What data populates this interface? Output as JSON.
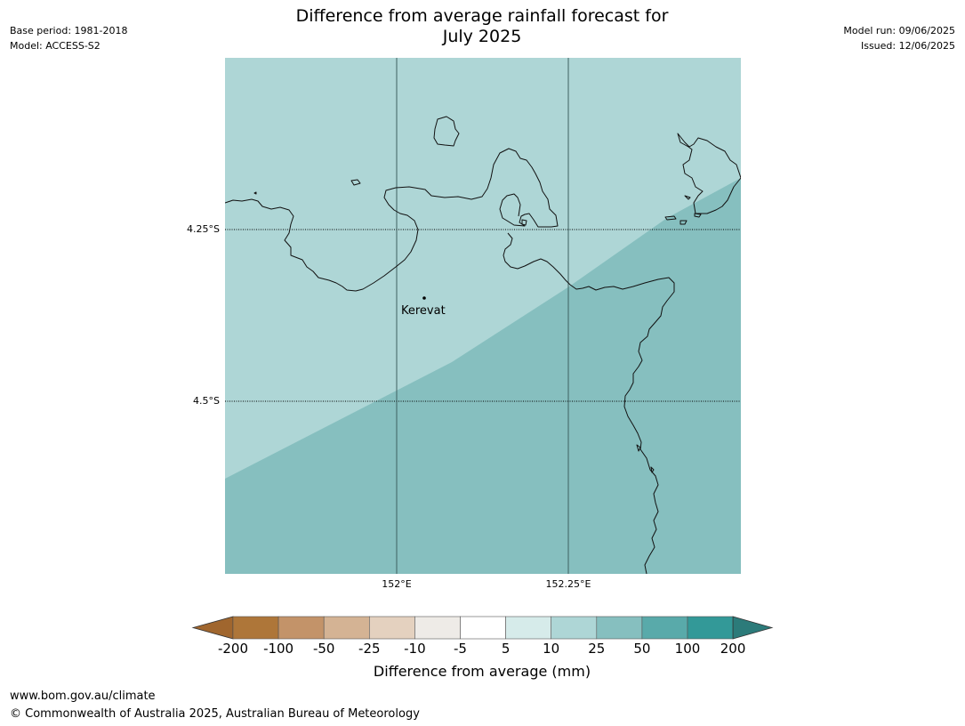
{
  "header": {
    "base_period": "Base period: 1981-2018",
    "model": "Model: ACCESS-S2",
    "model_run": "Model run: 09/06/2025",
    "issued": "Issued: 12/06/2025",
    "title_line1": "Difference from average rainfall forecast for",
    "title_line2": "July 2025"
  },
  "map": {
    "lat_labels": [
      "4.25°S",
      "4.5°S"
    ],
    "lon_labels": [
      "152°E",
      "152.25°E"
    ],
    "place": "Kerevat",
    "fill_colors": {
      "band_light": "#aed6d6",
      "band_mid": "#86bfbf"
    },
    "forecast_categories": [
      "10",
      "25"
    ]
  },
  "colorbar": {
    "title": "Difference from average (mm)",
    "ticks": [
      "-200",
      "-100",
      "-50",
      "-25",
      "-10",
      "-5",
      "5",
      "10",
      "25",
      "50",
      "100",
      "200"
    ],
    "colors": [
      "#a0662e",
      "#ae7639",
      "#c39369",
      "#d4b394",
      "#e4d1bf",
      "#eeebe7",
      "#ffffff",
      "#d6ebea",
      "#aed6d6",
      "#86bfbf",
      "#59aaaa",
      "#339998",
      "#2c7b7a"
    ]
  },
  "footer": {
    "url": "www.bom.gov.au/climate",
    "copyright": "© Commonwealth of Australia 2025, Australian Bureau of Meteorology"
  }
}
